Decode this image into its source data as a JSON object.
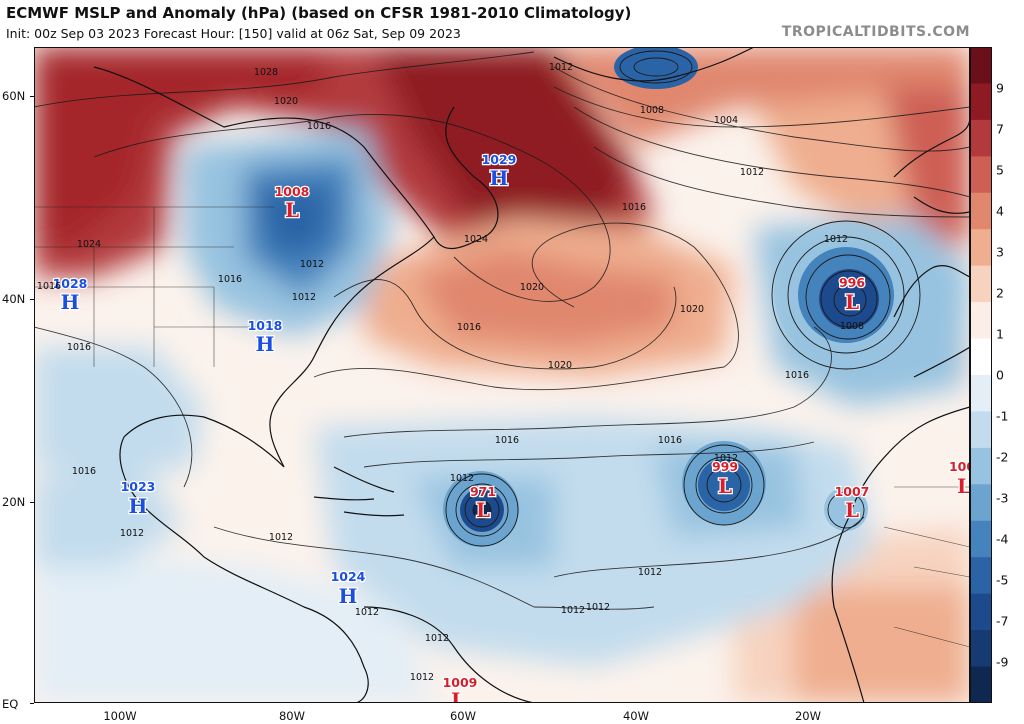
{
  "header": {
    "title": "ECMWF MSLP and Anomaly (hPa) (based on CFSR 1981-2010 Climatology)",
    "subtitle": "Init: 00z Sep 03 2023   Forecast Hour: [150]   valid at 06z Sat, Sep 09 2023",
    "site": "TROPICALTIDBITS.COM"
  },
  "axes": {
    "lat_labels": [
      "60N",
      "40N",
      "20N",
      "EQ"
    ],
    "lon_labels": [
      "100W",
      "80W",
      "60W",
      "40W",
      "20W"
    ]
  },
  "colorbar": {
    "labels": [
      "9",
      "7",
      "5",
      "4",
      "3",
      "2",
      "1",
      "0",
      "-1",
      "-2",
      "-3",
      "-4",
      "-5",
      "-7",
      "-9"
    ],
    "colors": [
      "#6b0f1a",
      "#8e1a24",
      "#b23a3c",
      "#cd5f55",
      "#e0876e",
      "#efae8f",
      "#f7d3bf",
      "#fbeee6",
      "#ffffff",
      "#e3eef6",
      "#c2dced",
      "#97c3e0",
      "#6ba4cf",
      "#4583bd",
      "#2b64a6",
      "#1d4a8d",
      "#163a72",
      "#0e2850"
    ]
  },
  "systems": [
    {
      "type": "H",
      "value": "1029",
      "color": "#1a4fe0"
    },
    {
      "type": "L",
      "value": "1008",
      "color": "#d81e2a"
    },
    {
      "type": "H",
      "value": "1028",
      "color": "#1a4fe0"
    },
    {
      "type": "H",
      "value": "1018",
      "color": "#1a4fe0"
    },
    {
      "type": "L",
      "value": "996",
      "color": "#d81e2a"
    },
    {
      "type": "L",
      "value": "999",
      "color": "#d81e2a"
    },
    {
      "type": "L",
      "value": "971",
      "color": "#d81e2a"
    },
    {
      "type": "L",
      "value": "1007",
      "color": "#d81e2a"
    },
    {
      "type": "L",
      "value": "100",
      "color": "#d81e2a"
    },
    {
      "type": "H",
      "value": "1023",
      "color": "#1a4fe0"
    },
    {
      "type": "H",
      "value": "1024",
      "color": "#1a4fe0"
    },
    {
      "type": "L",
      "value": "1009",
      "color": "#d81e2a"
    }
  ],
  "isobar_labels": [
    "1028",
    "1020",
    "1016",
    "1012",
    "1008",
    "1004",
    "1012",
    "1016",
    "1024",
    "1012",
    "1016",
    "1024",
    "1016",
    "1016",
    "1012",
    "1016",
    "1020",
    "1020",
    "1020",
    "1012",
    "1008",
    "1016",
    "1016",
    "1016",
    "1012",
    "1012",
    "1012",
    "1012",
    "1012",
    "1012",
    "1012",
    "1016",
    "1012",
    "1012",
    "1012"
  ]
}
